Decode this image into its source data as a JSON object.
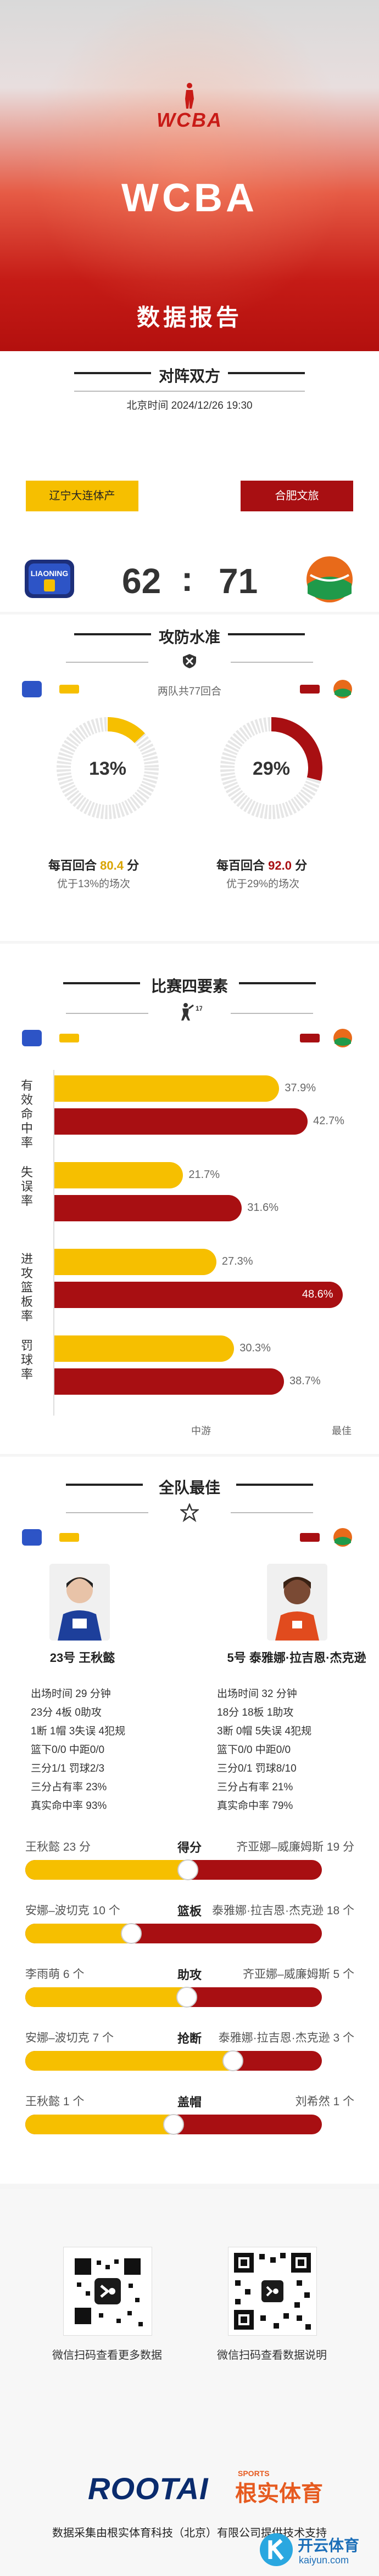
{
  "hero": {
    "logo_text": "WCBA",
    "title": "WCBA",
    "subtitle": "数据报告"
  },
  "matchup": {
    "section_title": "对阵双方",
    "datetime": "北京时间 2024/12/26 19:30",
    "home_team": "辽宁大连体产",
    "away_team": "合肥文旅",
    "home_score": "62",
    "separator": ":",
    "away_score": "71"
  },
  "offense": {
    "section_title": "攻防水准",
    "rounds_note": "两队共77回合",
    "home": {
      "pct_label": "13%",
      "pct": 13,
      "per_round_prefix": "每百回合",
      "per_round_value": "80.4",
      "per_round_unit": "分",
      "better_than": "优于13%的场次"
    },
    "away": {
      "pct_label": "29%",
      "pct": 29,
      "per_round_prefix": "每百回合",
      "per_round_value": "92.0",
      "per_round_unit": "分",
      "better_than": "优于29%的场次"
    }
  },
  "four_factors": {
    "section_title": "比赛四要素",
    "rows": [
      {
        "label": "有效命中率",
        "home_label": "37.9%",
        "home": 37.9,
        "away_label": "42.7%",
        "away": 42.7
      },
      {
        "label": "失误率",
        "home_label": "21.7%",
        "home": 21.7,
        "away_label": "31.6%",
        "away": 31.6
      },
      {
        "label": "进攻篮板率",
        "home_label": "27.3%",
        "home": 27.3,
        "away_label": "48.6%",
        "away": 48.6
      },
      {
        "label": "罚球率",
        "home_label": "30.3%",
        "home": 30.3,
        "away_label": "38.7%",
        "away": 38.7
      }
    ],
    "axis_mid": "中游",
    "axis_best": "最佳"
  },
  "best": {
    "section_title": "全队最佳",
    "home_player": {
      "name": "23号 王秋懿",
      "lines": [
        "出场时间 29 分钟",
        "23分    4板    0助攻",
        "1断    1帽    3失误    4犯规",
        "篮下0/0    中距0/0",
        "三分1/1    罚球2/3",
        "三分占有率 23%",
        "真实命中率 93%"
      ]
    },
    "away_player": {
      "name": "5号 泰雅娜·拉吉恩·杰克逊",
      "lines": [
        "出场时间 32 分钟",
        "18分    18板    1助攻",
        "3断    0帽    5失误    4犯规",
        "篮下0/0    中距0/0",
        "三分0/1    罚球8/10",
        "三分占有率 21%",
        "真实命中率 79%"
      ]
    },
    "compare": [
      {
        "title": "得分",
        "left": "王秋懿 23 分",
        "right": "齐亚娜–威廉姆斯 19 分",
        "fraction": 0.548
      },
      {
        "title": "篮板",
        "left": "安娜–波切克 10 个",
        "right": "泰雅娜·拉吉恩·杰克逊 18 个",
        "fraction": 0.357
      },
      {
        "title": "助攻",
        "left": "李雨萌 6 个",
        "right": "齐亚娜–威廉姆斯 5 个",
        "fraction": 0.545
      },
      {
        "title": "抢断",
        "left": "安娜–波切克 7 个",
        "right": "泰雅娜·拉吉恩·杰克逊 3 个",
        "fraction": 0.7
      },
      {
        "title": "盖帽",
        "left": "王秋懿 1 个",
        "right": "刘希然 1 个",
        "fraction": 0.5
      }
    ]
  },
  "footer": {
    "qr_left_caption": "微信扫码查看更多数据",
    "qr_right_caption": "微信扫码查看数据说明",
    "brand": "ROOTAI",
    "brand_sports": "SPORTS",
    "brand_cn": "根实体育",
    "note": "数据采集由根实体育科技（北京）有限公司提供技术支持",
    "watermark": "开云体育",
    "watermark_url": "kaiyun.com"
  },
  "colors": {
    "home": "#f6bf00",
    "away": "#a80f12"
  }
}
